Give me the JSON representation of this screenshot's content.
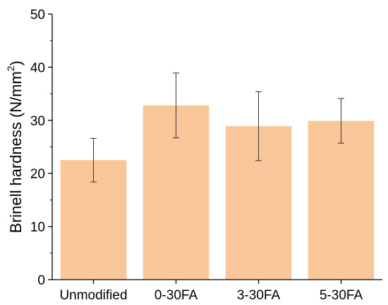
{
  "chart_data": {
    "type": "bar",
    "categories": [
      "Unmodified",
      "0-30FA",
      "3-30FA",
      "5-30FA"
    ],
    "series": [
      {
        "values": [
          22.5,
          32.8,
          28.9,
          29.9
        ],
        "error": [
          4.1,
          6.1,
          6.5,
          4.2
        ]
      }
    ],
    "xlabel": "",
    "ylabel": "Brinell hardness (N/mm",
    "ylabel_superscript": "2",
    "ylabel_close": ")",
    "ylim": [
      0,
      50
    ],
    "yticks": [
      0,
      10,
      20,
      30,
      40,
      50
    ],
    "grid": false,
    "legend": "none",
    "colors": {
      "bar": "#f9c699",
      "error_bar": "#333333",
      "axis": "#000000"
    }
  }
}
